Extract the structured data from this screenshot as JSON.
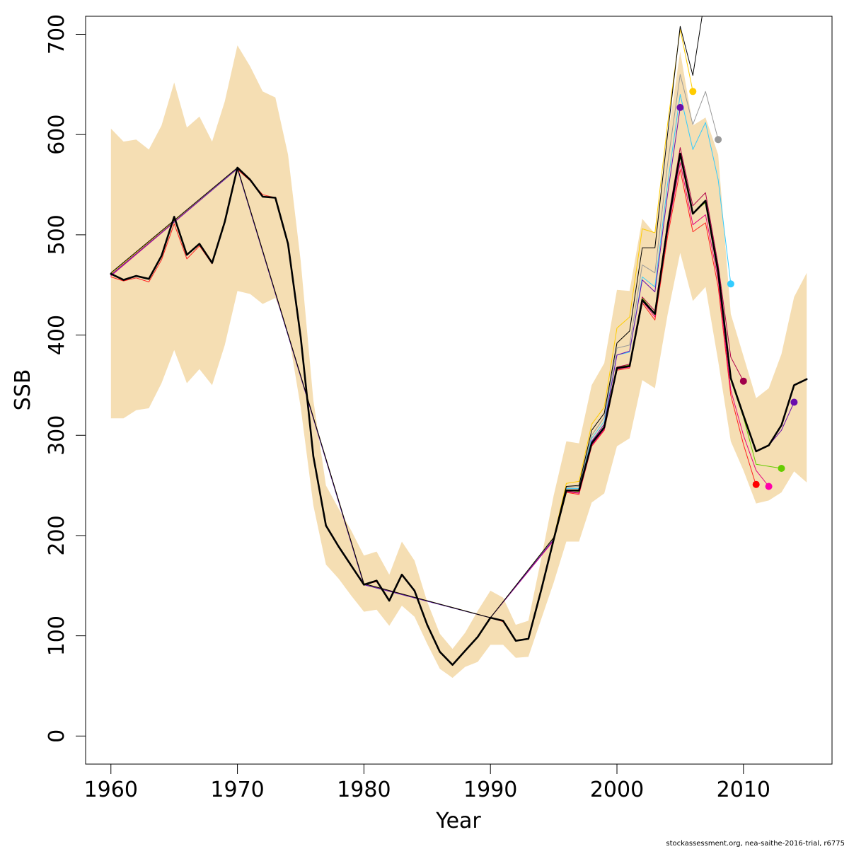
{
  "footer": "stockassessment.org, nea-saithe-2016-trial, r6775",
  "chart_data": {
    "type": "line",
    "title": "",
    "xlabel": "Year",
    "ylabel": "SSB",
    "xlim": [
      1958,
      2017
    ],
    "ylim": [
      -28,
      718
    ],
    "xticks": [
      1960,
      1970,
      1980,
      1990,
      2000,
      2010
    ],
    "yticks": [
      0,
      100,
      200,
      300,
      400,
      500,
      600,
      700
    ],
    "band_color": "#f5deb3",
    "band": {
      "x": [
        1960,
        1961,
        1962,
        1963,
        1964,
        1965,
        1966,
        1967,
        1968,
        1969,
        1970,
        1971,
        1972,
        1973,
        1974,
        1975,
        1976,
        1977,
        1978,
        1979,
        1980,
        1981,
        1982,
        1983,
        1984,
        1985,
        1986,
        1987,
        1988,
        1989,
        1990,
        1991,
        1992,
        1993,
        1994,
        1995,
        1996,
        1997,
        1998,
        1999,
        2000,
        2001,
        2002,
        2003,
        2004,
        2005,
        2006,
        2007,
        2008,
        2009,
        2010,
        2011,
        2012,
        2013,
        2014,
        2015
      ],
      "upper": [
        606,
        593,
        595,
        585,
        609,
        652,
        607,
        618,
        593,
        633,
        689,
        668,
        643,
        637,
        580,
        474,
        335,
        250,
        227,
        205,
        180,
        184,
        161,
        194,
        175,
        134,
        102,
        87,
        103,
        125,
        145,
        138,
        111,
        115,
        176,
        240,
        294,
        292,
        350,
        372,
        445,
        444,
        516,
        501,
        596,
        683,
        609,
        617,
        580,
        421,
        379,
        337,
        347,
        381,
        438,
        462
      ],
      "lower": [
        317,
        317,
        325,
        327,
        352,
        385,
        352,
        366,
        350,
        390,
        444,
        441,
        431,
        437,
        404,
        328,
        230,
        171,
        157,
        140,
        124,
        126,
        110,
        130,
        119,
        92,
        67,
        58,
        69,
        74,
        91,
        91,
        78,
        79,
        116,
        153,
        194,
        194,
        233,
        242,
        289,
        297,
        355,
        347,
        420,
        482,
        434,
        448,
        374,
        294,
        265,
        232,
        235,
        243,
        264,
        253
      ]
    },
    "series": [
      {
        "color": "#000000",
        "width": 2.6,
        "x": [
          1960,
          1961,
          1962,
          1963,
          1964,
          1965,
          1966,
          1967,
          1968,
          1969,
          1970,
          1971,
          1972,
          1973,
          1974,
          1975,
          1976,
          1977,
          1978,
          1979,
          1980,
          1981,
          1982,
          1983,
          1984,
          1985,
          1986,
          1987,
          1988,
          1989,
          1990,
          1991,
          1992,
          1993,
          1994,
          1995,
          1996,
          1997,
          1998,
          1999,
          2000,
          2001,
          2002,
          2003,
          2004,
          2005,
          2006,
          2007,
          2008,
          2009,
          2010,
          2011,
          2012,
          2013,
          2014,
          2015
        ],
        "values": [
          461,
          455,
          459,
          456,
          479,
          518,
          480,
          491,
          472,
          513,
          567,
          555,
          538,
          537,
          491,
          398,
          279,
          210,
          189,
          170,
          151,
          155,
          135,
          161,
          145,
          111,
          84,
          71,
          85,
          99,
          118,
          115,
          95,
          97,
          145,
          196,
          245,
          245,
          292,
          308,
          367,
          369,
          435,
          421,
          508,
          581,
          521,
          534,
          463,
          357,
          320,
          284,
          290,
          310,
          350,
          356
        ]
      },
      {
        "color": "#ff2020",
        "width": 1,
        "x": [
          1960,
          1961,
          1962,
          1963,
          1964,
          1965,
          1966,
          1967,
          1968,
          1969,
          1970,
          1971,
          1972,
          1973,
          1974,
          1975,
          1976,
          1977,
          1978,
          1979,
          1980,
          1981,
          1982,
          1983,
          1984,
          1985,
          1986,
          1987,
          1988,
          1989,
          1990,
          1991,
          1992,
          1993,
          1994,
          1995,
          1996,
          1997,
          1998,
          1999,
          2000,
          2001,
          2002,
          2003,
          2004,
          2005,
          2006,
          2007,
          2008,
          2009,
          2010,
          2011
        ],
        "values": [
          458,
          454,
          457,
          453,
          475,
          511,
          476,
          489,
          471,
          512,
          565,
          554,
          540,
          537,
          490,
          397,
          279,
          210,
          189,
          170,
          151,
          154,
          135,
          160,
          145,
          111,
          84,
          71,
          85,
          99,
          118,
          114,
          95,
          97,
          144,
          195,
          243,
          241,
          289,
          305,
          365,
          367,
          432,
          415,
          498,
          565,
          503,
          512,
          448,
          340,
          291,
          250
        ]
      },
      {
        "color": "#e6007e",
        "width": 1,
        "x": [
          1960,
          1970,
          1980,
          1990,
          1995,
          1996,
          1997,
          1998,
          1999,
          2000,
          2001,
          2002,
          2003,
          2004,
          2005,
          2006,
          2007,
          2008,
          2009,
          2010,
          2011,
          2012
        ],
        "values": [
          459,
          566,
          151,
          118,
          195,
          244,
          242,
          290,
          306,
          366,
          368,
          434,
          418,
          503,
          572,
          510,
          520,
          455,
          345,
          300,
          265,
          249
        ]
      },
      {
        "color": "#66cc00",
        "width": 1,
        "x": [
          1960,
          1970,
          1980,
          1990,
          1995,
          1996,
          1997,
          1998,
          1999,
          2000,
          2001,
          2002,
          2003,
          2004,
          2005,
          2006,
          2007,
          2008,
          2009,
          2010,
          2011,
          2013
        ],
        "values": [
          460,
          566,
          151,
          118,
          196,
          245,
          244,
          292,
          308,
          368,
          370,
          437,
          421,
          508,
          580,
          522,
          532,
          462,
          355,
          318,
          271,
          267
        ]
      },
      {
        "color": "#b0004a",
        "width": 1,
        "x": [
          1960,
          1970,
          1980,
          1990,
          1995,
          1996,
          1997,
          1998,
          1999,
          2000,
          2001,
          2002,
          2003,
          2004,
          2005,
          2006,
          2007,
          2008,
          2009,
          2010
        ],
        "values": [
          460,
          566,
          151,
          118,
          196,
          244,
          243,
          291,
          307,
          368,
          371,
          438,
          424,
          512,
          587,
          529,
          542,
          470,
          378,
          354
        ]
      },
      {
        "color": "#33ccff",
        "width": 1,
        "x": [
          1960,
          1970,
          1980,
          1990,
          1995,
          1996,
          1997,
          1998,
          1999,
          2000,
          2001,
          2002,
          2003,
          2004,
          2005,
          2006,
          2007,
          2008,
          2009
        ],
        "values": [
          460,
          566,
          151,
          118,
          197,
          247,
          247,
          297,
          314,
          380,
          383,
          458,
          448,
          550,
          640,
          585,
          612,
          555,
          451
        ]
      },
      {
        "color": "#999999",
        "width": 1,
        "x": [
          1960,
          1970,
          1980,
          1990,
          1995,
          1996,
          1997,
          1998,
          1999,
          2000,
          2001,
          2002,
          2003,
          2004,
          2005,
          2006,
          2007,
          2008
        ],
        "values": [
          461,
          567,
          152,
          118,
          197,
          248,
          249,
          300,
          318,
          387,
          390,
          470,
          462,
          570,
          660,
          610,
          643,
          595
        ]
      },
      {
        "color": "#ffcc00",
        "width": 1,
        "x": [
          1960,
          1970,
          1980,
          1990,
          1995,
          1996,
          1997,
          1998,
          1999,
          2000,
          2001,
          2002,
          2003,
          2004,
          2005,
          2006
        ],
        "values": [
          461,
          567,
          152,
          118,
          198,
          252,
          254,
          311,
          328,
          407,
          418,
          506,
          502,
          610,
          705,
          643
        ]
      },
      {
        "color": "#6a0dad",
        "width": 1,
        "x": [
          1960,
          1970,
          1980,
          1990,
          1995,
          1996,
          1997,
          1998,
          1999,
          2000,
          2001,
          2002,
          2003,
          2004,
          2005
        ],
        "values": [
          460,
          566,
          151,
          118,
          196,
          245,
          245,
          294,
          311,
          380,
          384,
          455,
          443,
          540,
          627
        ]
      },
      {
        "color": "#000000",
        "width": 1,
        "x": [
          1960,
          1970,
          1980,
          1990,
          1995,
          1996,
          1997,
          1998,
          1999,
          2000,
          2001,
          2002,
          2003,
          2004,
          2005,
          2006,
          2007
        ],
        "values": [
          462,
          567,
          152,
          118,
          198,
          249,
          250,
          305,
          322,
          392,
          404,
          487,
          487,
          600,
          708,
          659,
          740
        ]
      },
      {
        "color": "#6a0dad",
        "width": 1,
        "x": [
          2012,
          2013,
          2014
        ],
        "values": [
          290,
          305,
          333
        ]
      }
    ],
    "points": [
      {
        "x": 2005,
        "y": 627,
        "color": "#6a0dad"
      },
      {
        "x": 2006,
        "y": 643,
        "color": "#ffcc00"
      },
      {
        "x": 2008,
        "y": 595,
        "color": "#999999"
      },
      {
        "x": 2009,
        "y": 451,
        "color": "#33ccff"
      },
      {
        "x": 2010,
        "y": 354,
        "color": "#a0004a"
      },
      {
        "x": 2011,
        "y": 251,
        "color": "#ff0000"
      },
      {
        "x": 2012,
        "y": 249,
        "color": "#ff00aa"
      },
      {
        "x": 2013,
        "y": 267,
        "color": "#66cc00"
      },
      {
        "x": 2014,
        "y": 333,
        "color": "#6a0dad"
      }
    ]
  }
}
